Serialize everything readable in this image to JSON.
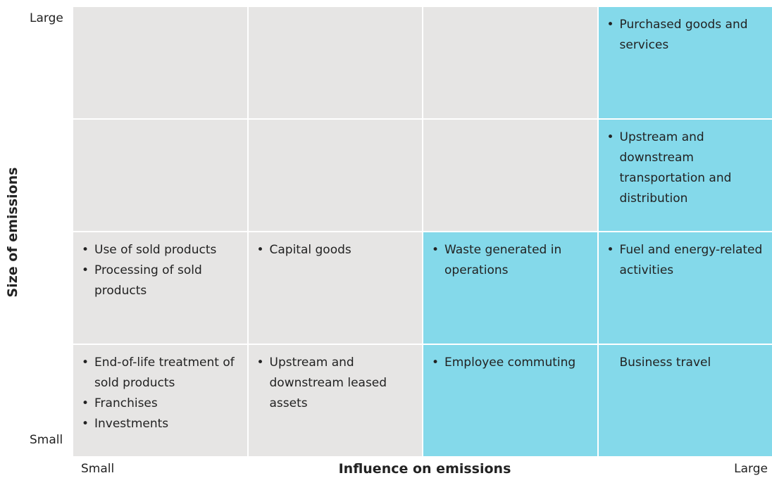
{
  "axes": {
    "y_title": "Size of emissions",
    "y_high": "Large",
    "y_low": "Small",
    "x_title": "Influence on emissions",
    "x_low": "Small",
    "x_high": "Large"
  },
  "colors": {
    "highlight": "#84d9ea",
    "default": "#e6e5e4"
  },
  "matrix": {
    "rows": [
      [
        {
          "highlighted": false,
          "bulleted": true,
          "items": []
        },
        {
          "highlighted": false,
          "bulleted": true,
          "items": []
        },
        {
          "highlighted": false,
          "bulleted": true,
          "items": []
        },
        {
          "highlighted": true,
          "bulleted": true,
          "items": [
            "Purchased goods and services"
          ]
        }
      ],
      [
        {
          "highlighted": false,
          "bulleted": true,
          "items": []
        },
        {
          "highlighted": false,
          "bulleted": true,
          "items": []
        },
        {
          "highlighted": false,
          "bulleted": true,
          "items": []
        },
        {
          "highlighted": true,
          "bulleted": true,
          "items": [
            "Upstream and downstream transportation and distribution"
          ]
        }
      ],
      [
        {
          "highlighted": false,
          "bulleted": true,
          "items": [
            "Use of sold products",
            "Processing of sold products"
          ]
        },
        {
          "highlighted": false,
          "bulleted": true,
          "items": [
            "Capital goods"
          ]
        },
        {
          "highlighted": true,
          "bulleted": true,
          "items": [
            "Waste generated in operations"
          ]
        },
        {
          "highlighted": true,
          "bulleted": true,
          "items": [
            "Fuel and energy-related activities"
          ]
        }
      ],
      [
        {
          "highlighted": false,
          "bulleted": true,
          "items": [
            "End-of-life treatment of sold products",
            "Franchises",
            "Investments"
          ]
        },
        {
          "highlighted": false,
          "bulleted": true,
          "items": [
            "Upstream and downstream leased assets"
          ]
        },
        {
          "highlighted": true,
          "bulleted": true,
          "items": [
            "Employee commuting"
          ]
        },
        {
          "highlighted": true,
          "bulleted": false,
          "items": [
            "Business travel"
          ]
        }
      ]
    ]
  }
}
